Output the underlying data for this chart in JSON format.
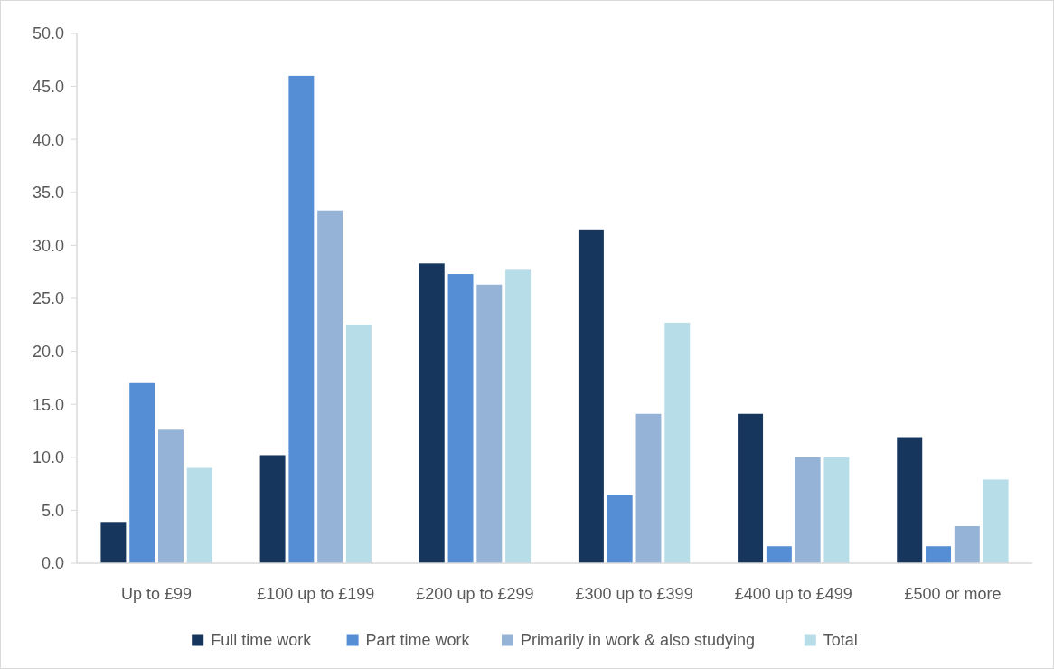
{
  "chart_data": {
    "type": "bar",
    "categories": [
      "Up to £99",
      "£100 up to £199",
      "£200 up to £299",
      "£300 up to £399",
      "£400 up to £499",
      "£500 or more"
    ],
    "series": [
      {
        "name": "Full time work",
        "color": "#17365d",
        "values": [
          3.9,
          10.2,
          28.3,
          31.5,
          14.1,
          11.9
        ]
      },
      {
        "name": "Part time work",
        "color": "#558ed5",
        "values": [
          17.0,
          46.0,
          27.3,
          6.4,
          1.6,
          1.6
        ]
      },
      {
        "name": "Primarily in work & also studying",
        "color": "#95b3d7",
        "values": [
          12.6,
          33.3,
          26.3,
          14.1,
          10.0,
          3.5
        ]
      },
      {
        "name": "Total",
        "color": "#b7dde8",
        "values": [
          9.0,
          22.5,
          27.7,
          22.7,
          10.0,
          7.9
        ]
      }
    ],
    "ylim": [
      0,
      50
    ],
    "yticks": [
      {
        "value": 0,
        "label": "0.0"
      },
      {
        "value": 5,
        "label": "5.0"
      },
      {
        "value": 10,
        "label": "10.0"
      },
      {
        "value": 15,
        "label": "15.0"
      },
      {
        "value": 20,
        "label": "20.0"
      },
      {
        "value": 25,
        "label": "25.0"
      },
      {
        "value": 30,
        "label": "30.0"
      },
      {
        "value": 35,
        "label": "35.0"
      },
      {
        "value": 40,
        "label": "40.0"
      },
      {
        "value": 45,
        "label": "45.0"
      },
      {
        "value": 50,
        "label": "50.0"
      }
    ],
    "grid": false,
    "legend": "bottom"
  }
}
